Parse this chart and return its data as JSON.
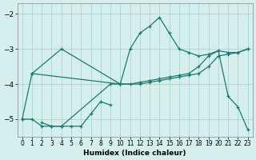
{
  "xlabel": "Humidex (Indice chaleur)",
  "bg_color": "#d5efec",
  "grid_color": "#aed4cf",
  "line_color": "#1a7a6e",
  "xlim": [
    -0.5,
    23.5
  ],
  "ylim": [
    -5.5,
    -1.7
  ],
  "yticks": [
    -5,
    -4,
    -3,
    -2
  ],
  "xticks": [
    0,
    1,
    2,
    3,
    4,
    5,
    6,
    7,
    8,
    9,
    10,
    11,
    12,
    13,
    14,
    15,
    16,
    17,
    18,
    19,
    20,
    21,
    22,
    23
  ],
  "curve_x": [
    0,
    1,
    2,
    3,
    4,
    9,
    10,
    11,
    12,
    13,
    14,
    15,
    16,
    17,
    18,
    19,
    20,
    21,
    22,
    23
  ],
  "curve_y": [
    -5.0,
    -5.0,
    -5.2,
    -5.2,
    -5.2,
    -4.0,
    -4.0,
    -3.0,
    -2.55,
    -2.35,
    -2.1,
    -2.55,
    -3.0,
    -3.1,
    -3.2,
    -3.15,
    -3.05,
    -4.35,
    -4.65,
    -5.3
  ],
  "diag_down_x": [
    1,
    4,
    10,
    12,
    13,
    14,
    15,
    16,
    17,
    18,
    19,
    20,
    21,
    22,
    23
  ],
  "diag_down_y": [
    -3.7,
    -3.0,
    -4.0,
    -4.0,
    -3.95,
    -3.9,
    -3.85,
    -3.8,
    -3.75,
    -3.7,
    -3.5,
    -3.2,
    -3.15,
    -3.1,
    -3.0
  ],
  "diag_up_x": [
    0,
    1,
    10,
    11,
    12,
    13,
    14,
    15,
    16,
    17,
    18,
    19,
    20,
    21,
    22,
    23
  ],
  "diag_up_y": [
    -5.0,
    -3.7,
    -4.0,
    -4.0,
    -3.95,
    -3.9,
    -3.85,
    -3.8,
    -3.75,
    -3.7,
    -3.5,
    -3.2,
    -3.05,
    -3.1,
    -3.1,
    -3.0
  ],
  "small_x": [
    2,
    3,
    4,
    5,
    6,
    7,
    8,
    9
  ],
  "small_y": [
    -5.1,
    -5.2,
    -5.2,
    -5.2,
    -5.2,
    -4.85,
    -4.5,
    -4.6
  ]
}
